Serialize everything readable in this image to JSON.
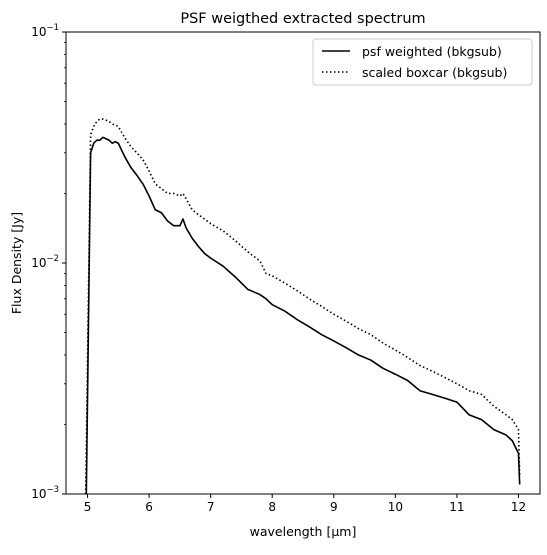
{
  "chart_data": {
    "type": "line",
    "title": "PSF weigthed extracted spectrum",
    "xlabel": "wavelength [μm]",
    "ylabel": "Flux Density [Jy]",
    "xlim": [
      4.65,
      12.35
    ],
    "ylim": [
      0.001,
      0.1
    ],
    "yscale": "log",
    "x_ticks": [
      5,
      6,
      7,
      8,
      9,
      10,
      11,
      12
    ],
    "x_tick_labels": [
      "5",
      "6",
      "7",
      "8",
      "9",
      "10",
      "11",
      "12"
    ],
    "y_ticks": [
      0.001,
      0.01,
      0.1
    ],
    "y_tick_labels": [
      {
        "base": "10",
        "exp": "−3"
      },
      {
        "base": "10",
        "exp": "−2"
      },
      {
        "base": "10",
        "exp": "−1"
      }
    ],
    "grid": false,
    "legend_position": "top-right",
    "series": [
      {
        "name": "psf weighted (bkgsub)",
        "style": "solid",
        "color": "#000000",
        "x": [
          4.98,
          5.05,
          5.1,
          5.15,
          5.2,
          5.25,
          5.3,
          5.35,
          5.4,
          5.45,
          5.5,
          5.6,
          5.7,
          5.8,
          5.9,
          6.0,
          6.1,
          6.2,
          6.3,
          6.4,
          6.5,
          6.55,
          6.6,
          6.7,
          6.8,
          6.9,
          7.0,
          7.2,
          7.4,
          7.6,
          7.8,
          7.9,
          8.0,
          8.2,
          8.4,
          8.6,
          8.8,
          9.0,
          9.2,
          9.4,
          9.6,
          9.8,
          10.0,
          10.2,
          10.4,
          10.6,
          10.8,
          11.0,
          11.2,
          11.4,
          11.6,
          11.8,
          11.9,
          12.0,
          12.02
        ],
        "y": [
          0.001,
          0.03,
          0.033,
          0.034,
          0.034,
          0.035,
          0.0345,
          0.034,
          0.033,
          0.0335,
          0.033,
          0.029,
          0.026,
          0.024,
          0.022,
          0.0195,
          0.017,
          0.0165,
          0.0152,
          0.0145,
          0.0145,
          0.0155,
          0.0142,
          0.0128,
          0.0118,
          0.011,
          0.0105,
          0.0097,
          0.0087,
          0.0077,
          0.0073,
          0.007,
          0.0066,
          0.0062,
          0.0057,
          0.0053,
          0.0049,
          0.0046,
          0.0043,
          0.004,
          0.0038,
          0.0035,
          0.0033,
          0.0031,
          0.0028,
          0.0027,
          0.0026,
          0.0025,
          0.0022,
          0.0021,
          0.0019,
          0.0018,
          0.0017,
          0.0015,
          0.0011
        ]
      },
      {
        "name": "scaled boxcar (bkgsub)",
        "style": "dotted",
        "color": "#000000",
        "x": [
          4.97,
          5.05,
          5.1,
          5.15,
          5.2,
          5.25,
          5.3,
          5.35,
          5.4,
          5.45,
          5.5,
          5.6,
          5.7,
          5.8,
          5.9,
          6.0,
          6.1,
          6.2,
          6.3,
          6.4,
          6.5,
          6.55,
          6.6,
          6.7,
          6.8,
          6.9,
          7.0,
          7.2,
          7.4,
          7.6,
          7.8,
          7.9,
          8.0,
          8.2,
          8.4,
          8.6,
          8.8,
          9.0,
          9.2,
          9.4,
          9.6,
          9.8,
          10.0,
          10.2,
          10.4,
          10.6,
          10.8,
          11.0,
          11.2,
          11.4,
          11.6,
          11.8,
          11.9,
          12.0,
          12.02
        ],
        "y": [
          0.001,
          0.036,
          0.039,
          0.041,
          0.042,
          0.042,
          0.0415,
          0.041,
          0.04,
          0.0395,
          0.039,
          0.035,
          0.032,
          0.03,
          0.028,
          0.025,
          0.022,
          0.021,
          0.02,
          0.02,
          0.0195,
          0.02,
          0.019,
          0.017,
          0.0162,
          0.0155,
          0.0148,
          0.0138,
          0.0125,
          0.0112,
          0.0102,
          0.009,
          0.0088,
          0.0082,
          0.0076,
          0.007,
          0.0065,
          0.006,
          0.0056,
          0.0052,
          0.0049,
          0.0045,
          0.0042,
          0.0039,
          0.0036,
          0.0034,
          0.0032,
          0.003,
          0.0028,
          0.0027,
          0.0024,
          0.0022,
          0.0021,
          0.0019,
          0.0012
        ]
      }
    ]
  }
}
